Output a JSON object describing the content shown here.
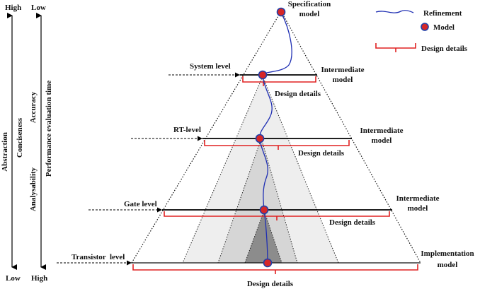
{
  "axes": {
    "left_top": "High",
    "left_bottom": "Low",
    "right_top": "Low",
    "right_bottom": "High",
    "abstraction": "Abstraction",
    "conciseness": "Conciseness",
    "analysability": "Analysability",
    "accuracy": "Accuracy",
    "performance_time": "Performance evaluation time"
  },
  "levels": {
    "system": "System level",
    "rt": "RT-level",
    "gate": "Gate level",
    "transistor": "Transistor  level"
  },
  "models": {
    "spec_line1": "Specification",
    "spec_line2": "model",
    "inter1_line1": "Intermediate",
    "inter1_line2": "model",
    "inter2_line1": "Intermediate",
    "inter2_line2": "model",
    "inter3_line1": "Intermediate",
    "inter3_line2": "model",
    "impl_line1": "Implementation",
    "impl_line2": "model"
  },
  "design_details": {
    "d1": "Design details",
    "d2": "Design details",
    "d3": "Design details",
    "d4": "Design details"
  },
  "legend": {
    "refinement": "Refinement",
    "model": "Model",
    "design_details": "Design details"
  },
  "colors": {
    "refinement_line": "#1f2fb3",
    "model_fill": "#d62728",
    "model_stroke": "#1f3fa8",
    "bracket": "#e02020"
  }
}
